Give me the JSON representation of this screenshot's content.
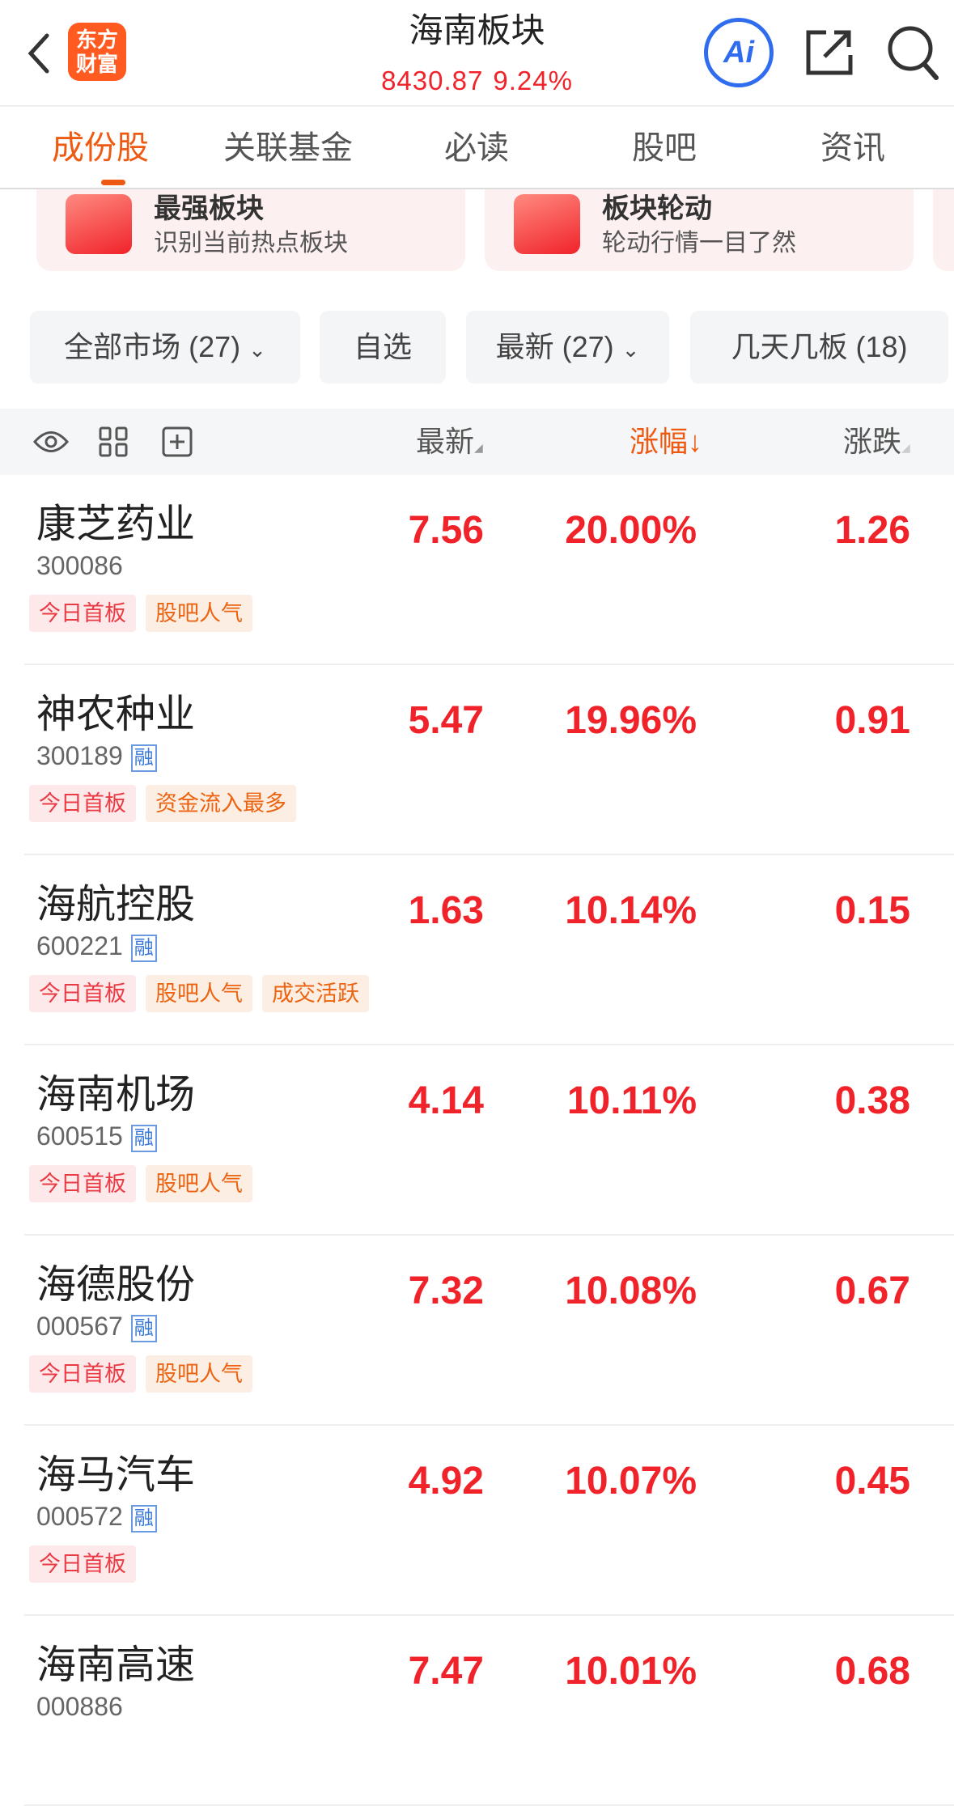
{
  "header": {
    "title": "海南板块",
    "index_value": "8430.87",
    "index_change": "9.24%",
    "logo_text": [
      "东方",
      "财富"
    ],
    "ai_label": "Ai"
  },
  "tabs": [
    {
      "label": "成份股",
      "active": true
    },
    {
      "label": "关联基金"
    },
    {
      "label": "必读"
    },
    {
      "label": "股吧"
    },
    {
      "label": "资讯"
    }
  ],
  "cards": [
    {
      "title": "最强板块",
      "subtitle": "识别当前热点板块"
    },
    {
      "title": "板块轮动",
      "subtitle": "轮动行情一目了然"
    }
  ],
  "filters": [
    {
      "label": "全部市场 (27)",
      "dropdown": true
    },
    {
      "label": "自选"
    },
    {
      "label": "最新 (27)",
      "dropdown": true
    },
    {
      "label": "几天几板 (18)"
    }
  ],
  "table": {
    "columns": {
      "latest": "最新",
      "change_pct": "涨幅",
      "change": "涨跌"
    },
    "sort_column": "涨幅",
    "sort_direction": "desc",
    "rong_label": "融",
    "rows": [
      {
        "name": "康芝药业",
        "code": "300086",
        "rong": false,
        "tags": [
          {
            "text": "今日首板",
            "color": "red"
          },
          {
            "text": "股吧人气",
            "color": "orange"
          }
        ],
        "latest": "7.56",
        "change_pct": "20.00%",
        "change": "1.26"
      },
      {
        "name": "神农种业",
        "code": "300189",
        "rong": true,
        "tags": [
          {
            "text": "今日首板",
            "color": "red"
          },
          {
            "text": "资金流入最多",
            "color": "orange"
          }
        ],
        "latest": "5.47",
        "change_pct": "19.96%",
        "change": "0.91"
      },
      {
        "name": "海航控股",
        "code": "600221",
        "rong": true,
        "tags": [
          {
            "text": "今日首板",
            "color": "red"
          },
          {
            "text": "股吧人气",
            "color": "orange"
          },
          {
            "text": "成交活跃",
            "color": "orange"
          }
        ],
        "latest": "1.63",
        "change_pct": "10.14%",
        "change": "0.15"
      },
      {
        "name": "海南机场",
        "code": "600515",
        "rong": true,
        "tags": [
          {
            "text": "今日首板",
            "color": "red"
          },
          {
            "text": "股吧人气",
            "color": "orange"
          }
        ],
        "latest": "4.14",
        "change_pct": "10.11%",
        "change": "0.38"
      },
      {
        "name": "海德股份",
        "code": "000567",
        "rong": true,
        "tags": [
          {
            "text": "今日首板",
            "color": "red"
          },
          {
            "text": "股吧人气",
            "color": "orange"
          }
        ],
        "latest": "7.32",
        "change_pct": "10.08%",
        "change": "0.67"
      },
      {
        "name": "海马汽车",
        "code": "000572",
        "rong": true,
        "tags": [
          {
            "text": "今日首板",
            "color": "red"
          }
        ],
        "latest": "4.92",
        "change_pct": "10.07%",
        "change": "0.45"
      },
      {
        "name": "海南高速",
        "code": "000886",
        "rong": false,
        "tags": [],
        "latest": "7.47",
        "change_pct": "10.01%",
        "change": "0.68"
      }
    ]
  },
  "colors": {
    "up": "#f0232a",
    "accent": "#ee5a12",
    "ai": "#2f6cf0"
  }
}
